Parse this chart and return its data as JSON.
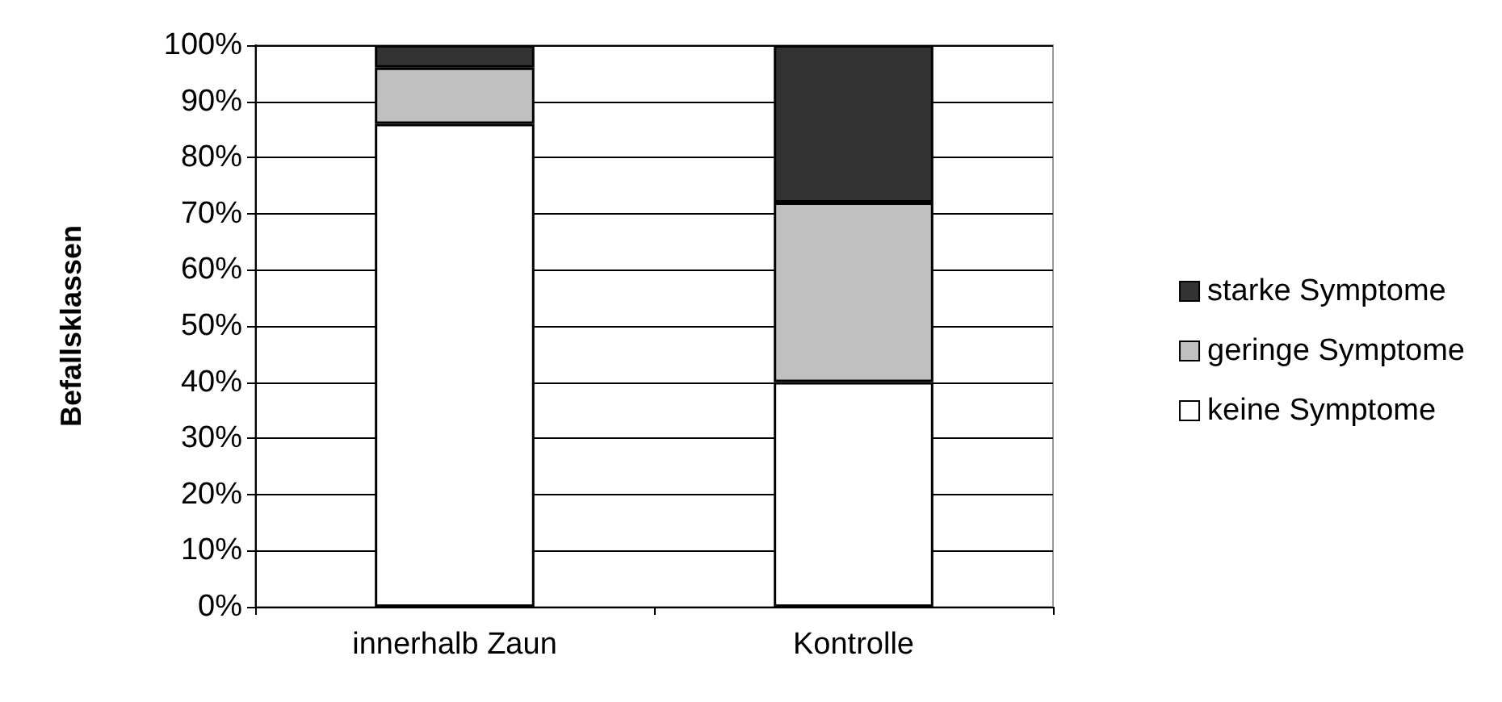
{
  "chart_data": {
    "type": "bar",
    "stacked": true,
    "ylabel": "Befallsklassen",
    "categories": [
      "innerhalb Zaun",
      "Kontrolle"
    ],
    "series": [
      {
        "name": "keine Symptome",
        "color": "#ffffff",
        "values": [
          86,
          40
        ]
      },
      {
        "name": "geringe Symptome",
        "color": "#c0c0c0",
        "values": [
          10,
          32
        ]
      },
      {
        "name": "starke Symptome",
        "color": "#333333",
        "values": [
          4,
          28
        ]
      }
    ],
    "ylim": [
      0,
      100
    ],
    "yticks": [
      {
        "value": 0,
        "label": "0%"
      },
      {
        "value": 10,
        "label": "10%"
      },
      {
        "value": 20,
        "label": "20%"
      },
      {
        "value": 30,
        "label": "30%"
      },
      {
        "value": 40,
        "label": "40%"
      },
      {
        "value": 50,
        "label": "50%"
      },
      {
        "value": 60,
        "label": "60%"
      },
      {
        "value": 70,
        "label": "70%"
      },
      {
        "value": 80,
        "label": "80%"
      },
      {
        "value": 90,
        "label": "90%"
      },
      {
        "value": 100,
        "label": "100%"
      }
    ],
    "grid": "y",
    "legend": "right"
  }
}
